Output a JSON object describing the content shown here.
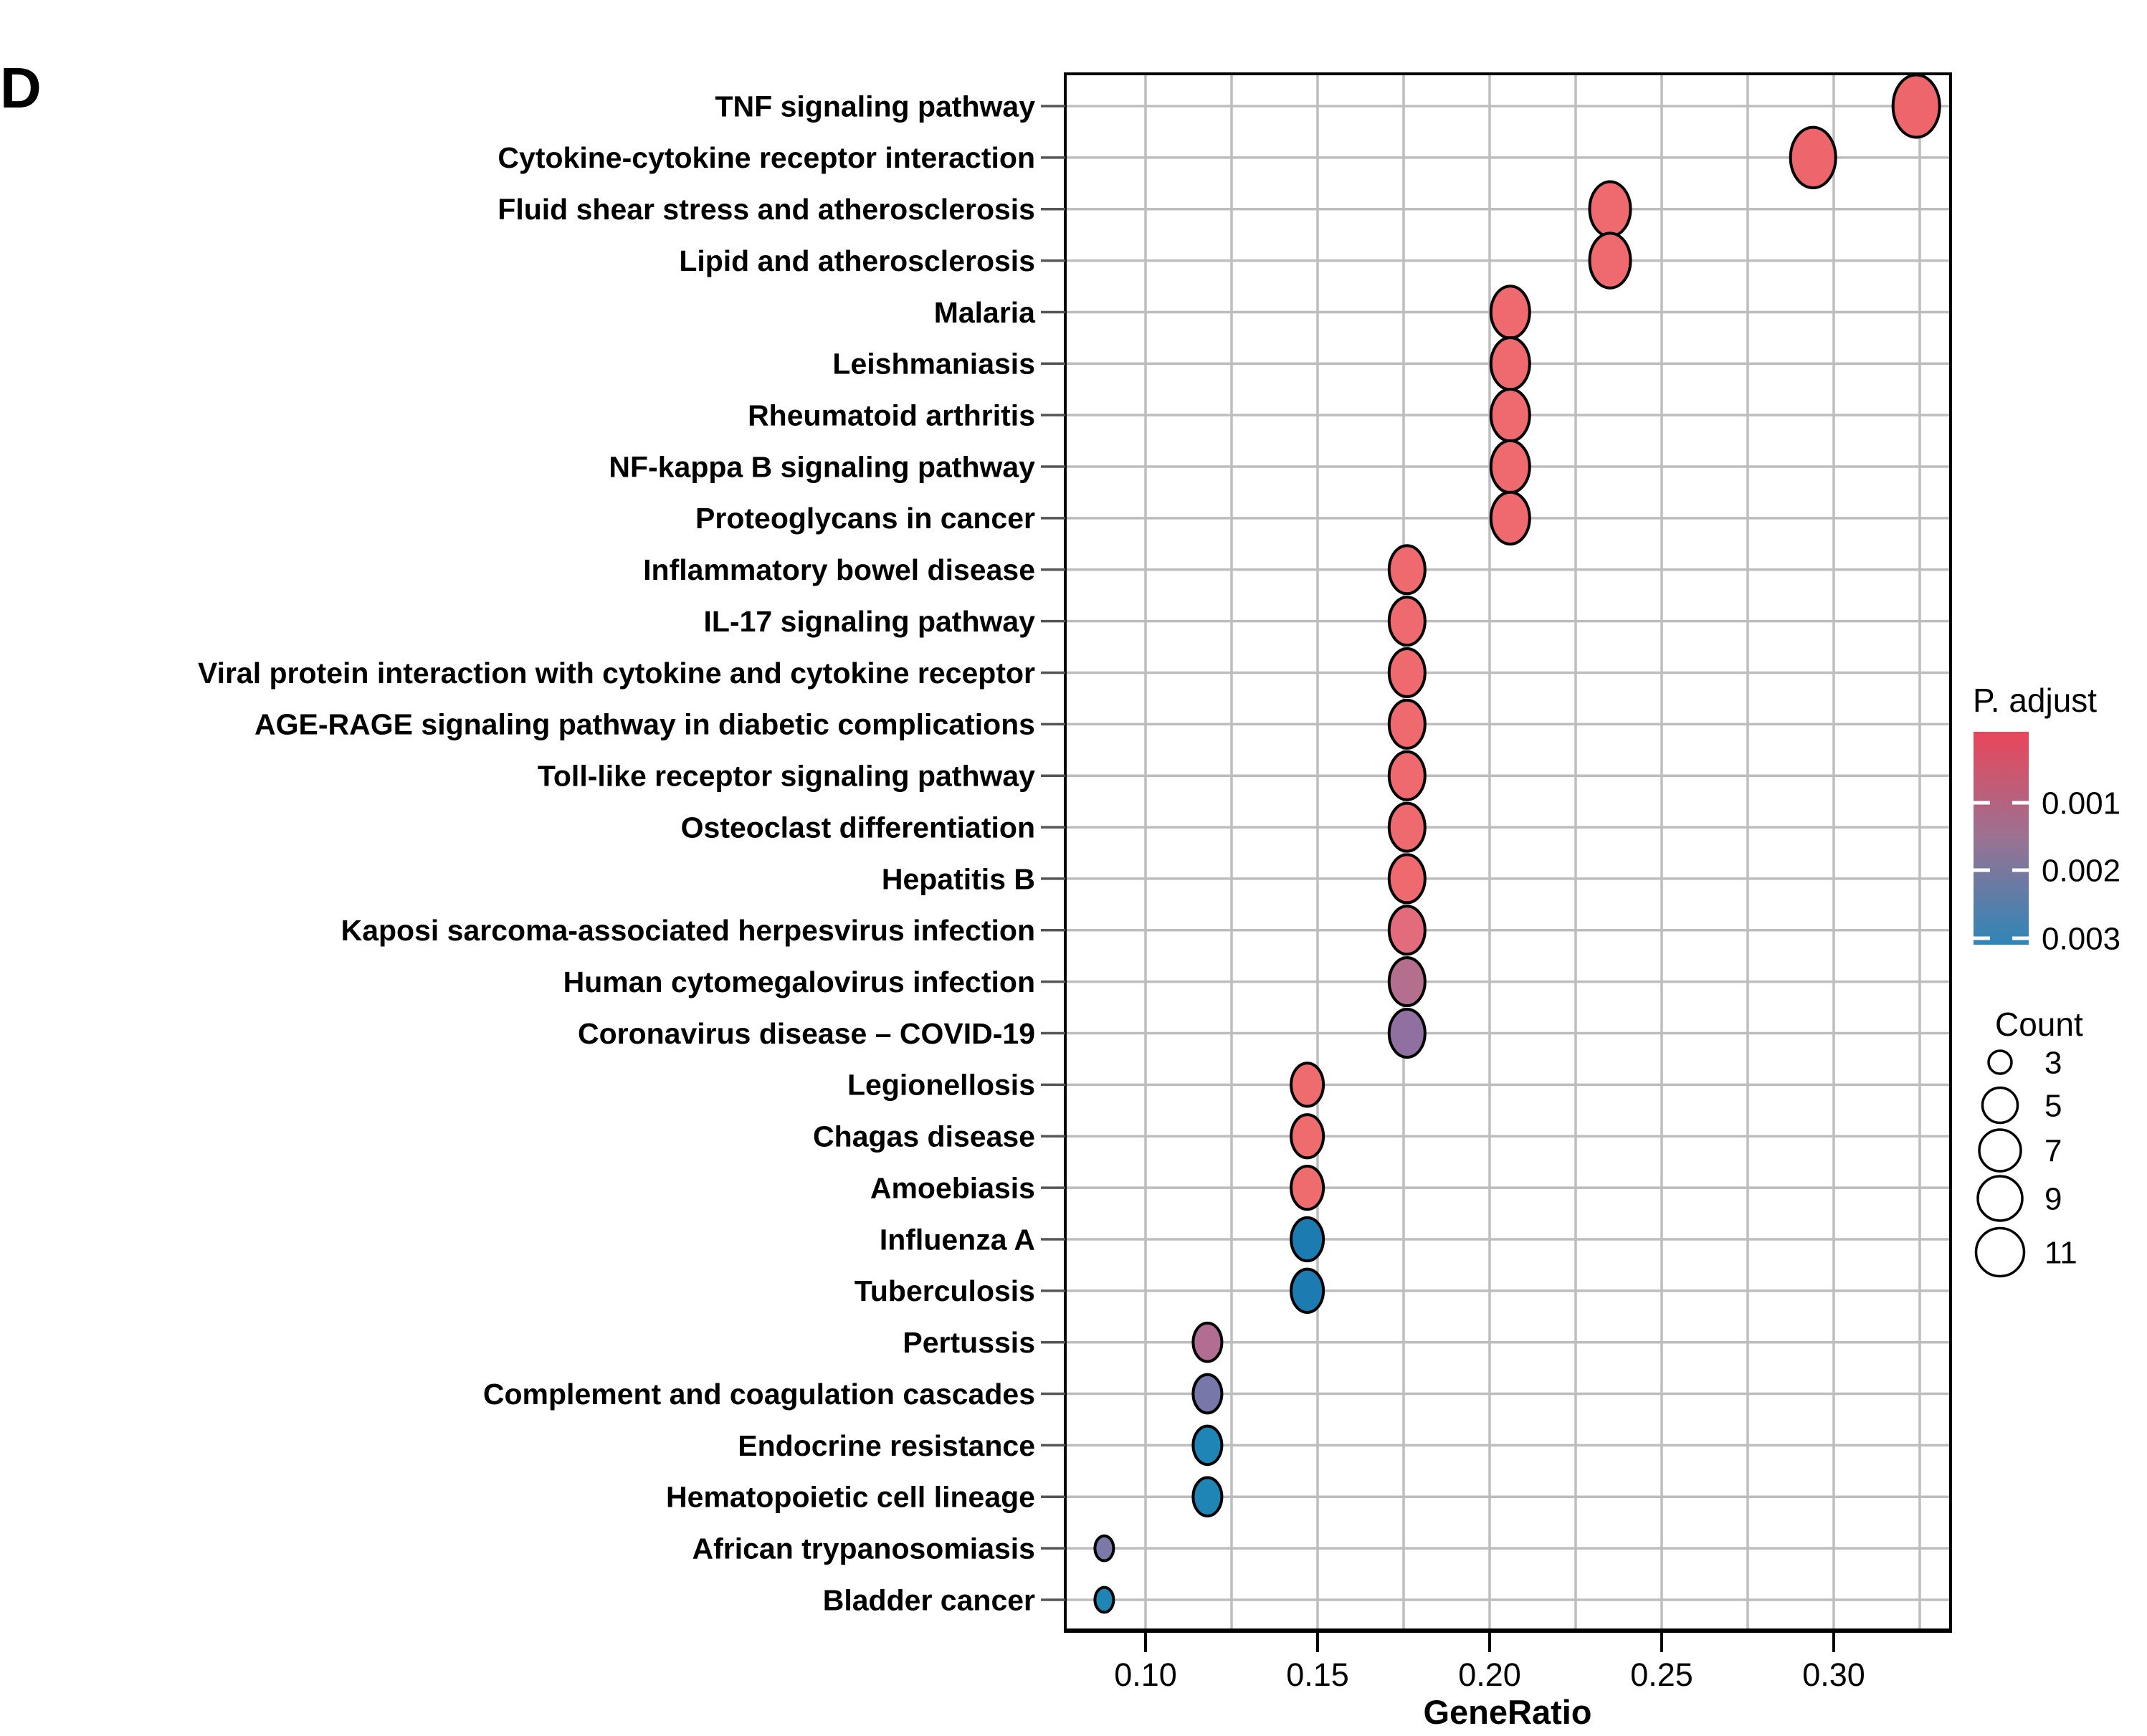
{
  "panel_label": "D",
  "chart_data": {
    "type": "scatter",
    "subtype": "enrichment-dotplot",
    "title": "",
    "xlabel": "GeneRatio",
    "ylabel": "",
    "xlim": [
      0.077,
      0.334
    ],
    "grid": true,
    "x_ticks": [
      "0.10",
      "0.15",
      "0.20",
      "0.25",
      "0.30"
    ],
    "x_tick_values": [
      0.1,
      0.15,
      0.2,
      0.25,
      0.3
    ],
    "x_minor_gridlines": [
      0.125,
      0.175,
      0.225,
      0.275,
      0.325
    ],
    "categories": [
      "TNF signaling pathway",
      "Cytokine-cytokine receptor interaction",
      "Fluid shear stress and atherosclerosis",
      "Lipid and atherosclerosis",
      "Malaria",
      "Leishmaniasis",
      "Rheumatoid arthritis",
      "NF-kappa B signaling pathway",
      "Proteoglycans in cancer",
      "Inflammatory bowel disease",
      "IL-17 signaling pathway",
      "Viral protein interaction with cytokine and cytokine receptor",
      "AGE-RAGE signaling pathway in diabetic complications",
      "Toll-like receptor signaling pathway",
      "Osteoclast differentiation",
      "Hepatitis B",
      "Kaposi sarcoma-associated herpesvirus infection",
      "Human cytomegalovirus infection",
      "Coronavirus disease – COVID-19",
      "Legionellosis",
      "Chagas disease",
      "Amoebiasis",
      "Influenza A",
      "Tuberculosis",
      "Pertussis",
      "Complement and coagulation cascades",
      "Endocrine resistance",
      "Hematopoietic cell lineage",
      "African trypanosomiasis",
      "Bladder cancer"
    ],
    "points": [
      {
        "category": "TNF signaling pathway",
        "gene_ratio": 0.324,
        "count": 11,
        "color": "#ED666B"
      },
      {
        "category": "Cytokine-cytokine receptor interaction",
        "gene_ratio": 0.294,
        "count": 10,
        "color": "#ED666B"
      },
      {
        "category": "Fluid shear stress and atherosclerosis",
        "gene_ratio": 0.235,
        "count": 8,
        "color": "#EE6A6E"
      },
      {
        "category": "Lipid and atherosclerosis",
        "gene_ratio": 0.235,
        "count": 8,
        "color": "#EE6A6E"
      },
      {
        "category": "Malaria",
        "gene_ratio": 0.206,
        "count": 7,
        "color": "#EE6A6E"
      },
      {
        "category": "Leishmaniasis",
        "gene_ratio": 0.206,
        "count": 7,
        "color": "#EE6A6E"
      },
      {
        "category": "Rheumatoid arthritis",
        "gene_ratio": 0.206,
        "count": 7,
        "color": "#EE6A6E"
      },
      {
        "category": "NF-kappa B signaling pathway",
        "gene_ratio": 0.206,
        "count": 7,
        "color": "#EE6A6E"
      },
      {
        "category": "Proteoglycans in cancer",
        "gene_ratio": 0.206,
        "count": 7,
        "color": "#EE6A6E"
      },
      {
        "category": "Inflammatory bowel disease",
        "gene_ratio": 0.176,
        "count": 6,
        "color": "#EE6A6E"
      },
      {
        "category": "IL-17 signaling pathway",
        "gene_ratio": 0.176,
        "count": 6,
        "color": "#EE6A6E"
      },
      {
        "category": "Viral protein interaction with cytokine and cytokine receptor",
        "gene_ratio": 0.176,
        "count": 6,
        "color": "#EE6A6E"
      },
      {
        "category": "AGE-RAGE signaling pathway in diabetic complications",
        "gene_ratio": 0.176,
        "count": 6,
        "color": "#EE6A6E"
      },
      {
        "category": "Toll-like receptor signaling pathway",
        "gene_ratio": 0.176,
        "count": 6,
        "color": "#EE6A6E"
      },
      {
        "category": "Osteoclast differentiation",
        "gene_ratio": 0.176,
        "count": 6,
        "color": "#EE6A6E"
      },
      {
        "category": "Hepatitis B",
        "gene_ratio": 0.176,
        "count": 6,
        "color": "#EE6A6E"
      },
      {
        "category": "Kaposi sarcoma-associated herpesvirus infection",
        "gene_ratio": 0.176,
        "count": 6,
        "color": "#E26C7C"
      },
      {
        "category": "Human cytomegalovirus infection",
        "gene_ratio": 0.176,
        "count": 6,
        "color": "#B46E8E"
      },
      {
        "category": "Coronavirus disease – COVID-19",
        "gene_ratio": 0.176,
        "count": 6,
        "color": "#8F70A0"
      },
      {
        "category": "Legionellosis",
        "gene_ratio": 0.147,
        "count": 5,
        "color": "#EF6C6E"
      },
      {
        "category": "Chagas disease",
        "gene_ratio": 0.147,
        "count": 5,
        "color": "#EF6C6E"
      },
      {
        "category": "Amoebiasis",
        "gene_ratio": 0.147,
        "count": 5,
        "color": "#EF6C6E"
      },
      {
        "category": "Influenza A",
        "gene_ratio": 0.147,
        "count": 5,
        "color": "#1C7BB0"
      },
      {
        "category": "Tuberculosis",
        "gene_ratio": 0.147,
        "count": 5,
        "color": "#1C7BB0"
      },
      {
        "category": "Pertussis",
        "gene_ratio": 0.118,
        "count": 4,
        "color": "#B26D92"
      },
      {
        "category": "Complement and coagulation cascades",
        "gene_ratio": 0.118,
        "count": 4,
        "color": "#7877A9"
      },
      {
        "category": "Endocrine resistance",
        "gene_ratio": 0.118,
        "count": 4,
        "color": "#1F85B5"
      },
      {
        "category": "Hematopoietic cell lineage",
        "gene_ratio": 0.118,
        "count": 4,
        "color": "#1F85B5"
      },
      {
        "category": "African trypanosomiasis",
        "gene_ratio": 0.088,
        "count": 3,
        "color": "#7B79A8"
      },
      {
        "category": "Bladder cancer",
        "gene_ratio": 0.088,
        "count": 3,
        "color": "#1F85B5"
      }
    ],
    "legend": {
      "p_adjust": {
        "title": "P. adjust",
        "tick_labels": [
          "0.001",
          "0.002",
          "0.003"
        ],
        "gradient_top_color": "#E9465A",
        "gradient_mid_color": "#9A7292",
        "gradient_bottom_color": "#2E86B8"
      },
      "count": {
        "title": "Count",
        "labels": [
          "3",
          "5",
          "7",
          "9",
          "11"
        ],
        "values": [
          3,
          5,
          7,
          9,
          11
        ]
      }
    },
    "colors": {
      "gridline": "#BDBDBD",
      "frame": "#000000",
      "bubble_stroke": "#000000"
    }
  }
}
